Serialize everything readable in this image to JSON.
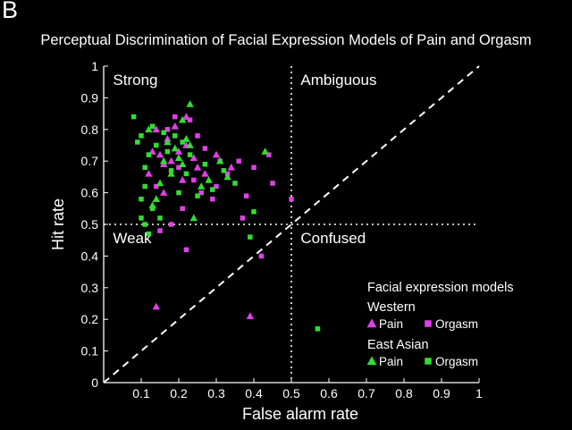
{
  "panel_label": "B",
  "chart_data": {
    "type": "scatter",
    "title": "Perceptual Discrimination of Facial Expression Models of Pain and Orgasm",
    "xlabel": "False alarm rate",
    "ylabel": "Hit rate",
    "xlim": [
      0,
      1
    ],
    "ylim": [
      0,
      1
    ],
    "x_ticks": [
      "0.1",
      "0.2",
      "0.3",
      "0.4",
      "0.5",
      "0.6",
      "0.7",
      "0.8",
      "0.9",
      "1"
    ],
    "y_ticks": [
      "0",
      "0.1",
      "0.2",
      "0.3",
      "0.4",
      "0.5",
      "0.6",
      "0.7",
      "0.8",
      "0.9",
      "1"
    ],
    "grid": false,
    "reference_lines": {
      "diagonal": true,
      "x": 0.5,
      "y": 0.5
    },
    "regions": [
      {
        "label": "Strong",
        "x": 0.02,
        "y": 0.98
      },
      {
        "label": "Ambiguous",
        "x": 0.52,
        "y": 0.98
      },
      {
        "label": "Weak",
        "x": 0.02,
        "y": 0.48
      },
      {
        "label": "Confused",
        "x": 0.52,
        "y": 0.48
      }
    ],
    "legend": {
      "placement": "bottom-right",
      "title": "Facial expression models",
      "groups": [
        {
          "name": "Western",
          "items": [
            {
              "label": "Pain",
              "marker": "triangle",
              "color": "#e040e8"
            },
            {
              "label": "Orgasm",
              "marker": "square",
              "color": "#e040e8"
            }
          ]
        },
        {
          "name": "East Asian",
          "items": [
            {
              "label": "Pain",
              "marker": "triangle",
              "color": "#33dd33"
            },
            {
              "label": "Orgasm",
              "marker": "square",
              "color": "#33dd33"
            }
          ]
        }
      ]
    },
    "series": [
      {
        "name": "Western Pain",
        "marker": "triangle",
        "color": "#e040e8",
        "points": [
          [
            0.14,
            0.24
          ],
          [
            0.39,
            0.21
          ],
          [
            0.12,
            0.66
          ],
          [
            0.14,
            0.8
          ],
          [
            0.15,
            0.72
          ],
          [
            0.16,
            0.69
          ],
          [
            0.17,
            0.77
          ],
          [
            0.18,
            0.7
          ],
          [
            0.19,
            0.81
          ],
          [
            0.2,
            0.73
          ],
          [
            0.21,
            0.64
          ],
          [
            0.22,
            0.75
          ],
          [
            0.24,
            0.71
          ],
          [
            0.25,
            0.68
          ],
          [
            0.27,
            0.66
          ],
          [
            0.3,
            0.72
          ],
          [
            0.34,
            0.68
          ],
          [
            0.22,
            0.84
          ],
          [
            0.16,
            0.6
          ],
          [
            0.13,
            0.73
          ]
        ]
      },
      {
        "name": "Western Orgasm",
        "marker": "square",
        "color": "#e040e8",
        "points": [
          [
            0.22,
            0.42
          ],
          [
            0.42,
            0.4
          ],
          [
            0.5,
            0.58
          ],
          [
            0.45,
            0.63
          ],
          [
            0.44,
            0.72
          ],
          [
            0.4,
            0.68
          ],
          [
            0.36,
            0.7
          ],
          [
            0.33,
            0.66
          ],
          [
            0.3,
            0.62
          ],
          [
            0.27,
            0.74
          ],
          [
            0.25,
            0.78
          ],
          [
            0.23,
            0.83
          ],
          [
            0.19,
            0.84
          ],
          [
            0.17,
            0.8
          ],
          [
            0.15,
            0.48
          ],
          [
            0.18,
            0.5
          ],
          [
            0.21,
            0.55
          ],
          [
            0.26,
            0.6
          ],
          [
            0.29,
            0.58
          ],
          [
            0.37,
            0.52
          ],
          [
            0.14,
            0.62
          ],
          [
            0.38,
            0.59
          ],
          [
            0.31,
            0.7
          ],
          [
            0.2,
            0.68
          ],
          [
            0.24,
            0.64
          ]
        ]
      },
      {
        "name": "East Asian Pain",
        "marker": "triangle",
        "color": "#33dd33",
        "points": [
          [
            0.23,
            0.88
          ],
          [
            0.12,
            0.8
          ],
          [
            0.14,
            0.58
          ],
          [
            0.15,
            0.63
          ],
          [
            0.16,
            0.7
          ],
          [
            0.17,
            0.76
          ],
          [
            0.18,
            0.66
          ],
          [
            0.19,
            0.74
          ],
          [
            0.2,
            0.71
          ],
          [
            0.21,
            0.69
          ],
          [
            0.22,
            0.77
          ],
          [
            0.23,
            0.75
          ],
          [
            0.24,
            0.52
          ],
          [
            0.26,
            0.62
          ],
          [
            0.28,
            0.64
          ],
          [
            0.31,
            0.7
          ],
          [
            0.33,
            0.65
          ],
          [
            0.43,
            0.73
          ],
          [
            0.21,
            0.83
          ],
          [
            0.13,
            0.56
          ]
        ]
      },
      {
        "name": "East Asian Orgasm",
        "marker": "square",
        "color": "#33dd33",
        "points": [
          [
            0.57,
            0.17
          ],
          [
            0.39,
            0.46
          ],
          [
            0.4,
            0.54
          ],
          [
            0.08,
            0.84
          ],
          [
            0.09,
            0.76
          ],
          [
            0.1,
            0.78
          ],
          [
            0.11,
            0.68
          ],
          [
            0.1,
            0.52
          ],
          [
            0.11,
            0.5
          ],
          [
            0.12,
            0.47
          ],
          [
            0.13,
            0.55
          ],
          [
            0.11,
            0.62
          ],
          [
            0.12,
            0.72
          ],
          [
            0.14,
            0.75
          ],
          [
            0.16,
            0.79
          ],
          [
            0.17,
            0.73
          ],
          [
            0.18,
            0.67
          ],
          [
            0.19,
            0.78
          ],
          [
            0.21,
            0.76
          ],
          [
            0.22,
            0.66
          ],
          [
            0.23,
            0.72
          ],
          [
            0.25,
            0.59
          ],
          [
            0.27,
            0.69
          ],
          [
            0.29,
            0.61
          ],
          [
            0.32,
            0.67
          ],
          [
            0.35,
            0.63
          ],
          [
            0.2,
            0.6
          ],
          [
            0.15,
            0.52
          ],
          [
            0.13,
            0.81
          ],
          [
            0.1,
            0.58
          ]
        ]
      }
    ]
  }
}
